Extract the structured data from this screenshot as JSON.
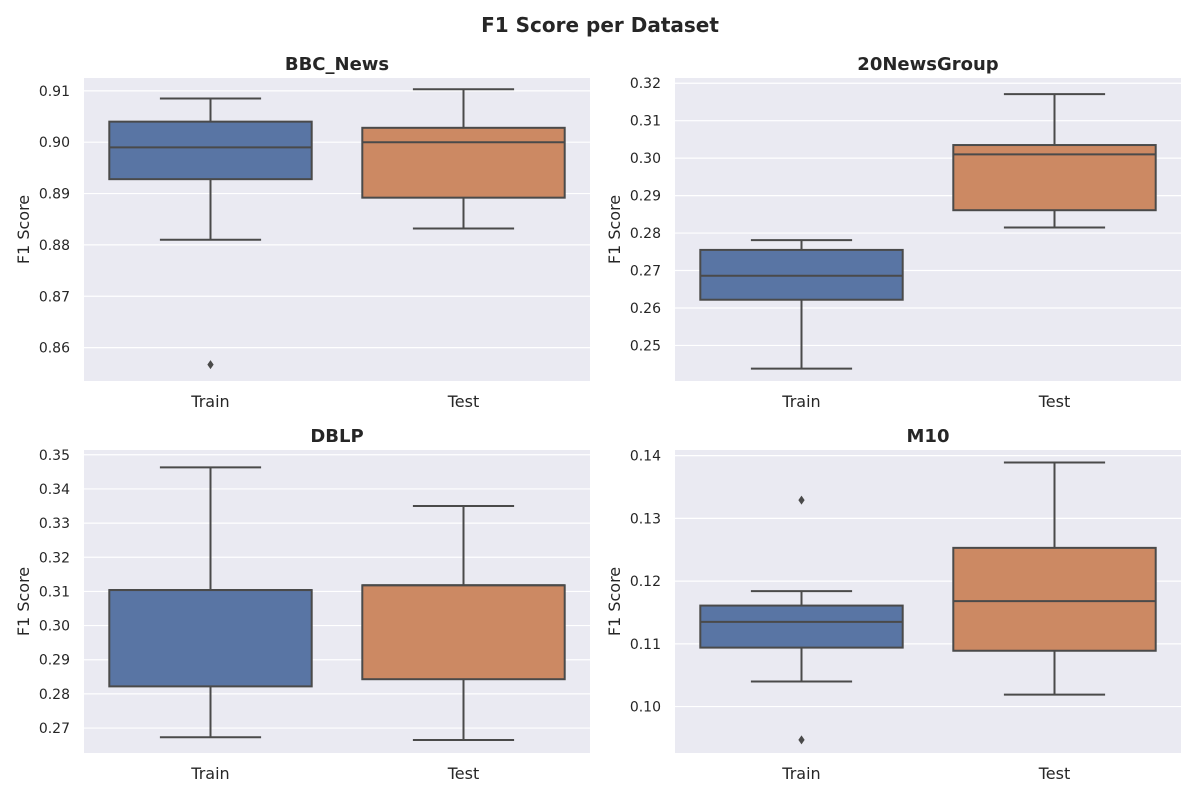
{
  "figure": {
    "title": "F1 Score per Dataset"
  },
  "colors": {
    "background": "#EAEAF2",
    "grid": "#ffffff",
    "line": "#4a4a4a",
    "Train": "#5975A4",
    "Test": "#CC8963"
  },
  "chart_data": [
    {
      "type": "box",
      "title": "BBC_News",
      "xlabel": "",
      "ylabel": "F1 Score",
      "categories": [
        "Train",
        "Test"
      ],
      "ylim": [
        0.8535,
        0.9125
      ],
      "yticks": [
        0.86,
        0.87,
        0.88,
        0.89,
        0.9,
        0.91
      ],
      "ytick_labels": [
        "0.86",
        "0.87",
        "0.88",
        "0.89",
        "0.90",
        "0.91"
      ],
      "grid": true,
      "boxes": [
        {
          "name": "Train",
          "whislo": 0.881,
          "q1": 0.8928,
          "med": 0.899,
          "q3": 0.904,
          "whishi": 0.9085,
          "fliers": [
            0.8567
          ]
        },
        {
          "name": "Test",
          "whislo": 0.8832,
          "q1": 0.8892,
          "med": 0.9,
          "q3": 0.9028,
          "whishi": 0.9103,
          "fliers": []
        }
      ]
    },
    {
      "type": "box",
      "title": "20NewsGroup",
      "xlabel": "",
      "ylabel": "F1 Score",
      "categories": [
        "Train",
        "Test"
      ],
      "ylim": [
        0.2405,
        0.3214
      ],
      "yticks": [
        0.25,
        0.26,
        0.27,
        0.28,
        0.29,
        0.3,
        0.31,
        0.32
      ],
      "ytick_labels": [
        "0.25",
        "0.26",
        "0.27",
        "0.28",
        "0.29",
        "0.30",
        "0.31",
        "0.32"
      ],
      "grid": true,
      "boxes": [
        {
          "name": "Train",
          "whislo": 0.2438,
          "q1": 0.2622,
          "med": 0.2686,
          "q3": 0.2755,
          "whishi": 0.2781,
          "fliers": []
        },
        {
          "name": "Test",
          "whislo": 0.2815,
          "q1": 0.2861,
          "med": 0.301,
          "q3": 0.3035,
          "whishi": 0.3171,
          "fliers": []
        }
      ]
    },
    {
      "type": "box",
      "title": "DBLP",
      "xlabel": "",
      "ylabel": "F1 Score",
      "categories": [
        "Train",
        "Test"
      ],
      "ylim": [
        0.2627,
        0.3514
      ],
      "yticks": [
        0.27,
        0.28,
        0.29,
        0.3,
        0.31,
        0.32,
        0.33,
        0.34,
        0.35
      ],
      "ytick_labels": [
        "0.27",
        "0.28",
        "0.29",
        "0.30",
        "0.31",
        "0.32",
        "0.33",
        "0.34",
        "0.35"
      ],
      "grid": true,
      "boxes": [
        {
          "name": "Train",
          "whislo": 0.2673,
          "q1": 0.2822,
          "med": 0.3104,
          "q3": 0.3104,
          "whishi": 0.3463,
          "fliers": []
        },
        {
          "name": "Test",
          "whislo": 0.2665,
          "q1": 0.2843,
          "med": 0.3118,
          "q3": 0.3118,
          "whishi": 0.335,
          "fliers": []
        }
      ]
    },
    {
      "type": "box",
      "title": "M10",
      "xlabel": "",
      "ylabel": "F1 Score",
      "categories": [
        "Train",
        "Test"
      ],
      "ylim": [
        0.0926,
        0.1409
      ],
      "yticks": [
        0.1,
        0.11,
        0.12,
        0.13,
        0.14
      ],
      "ytick_labels": [
        "0.10",
        "0.11",
        "0.12",
        "0.13",
        "0.14"
      ],
      "grid": true,
      "boxes": [
        {
          "name": "Train",
          "whislo": 0.104,
          "q1": 0.1094,
          "med": 0.1135,
          "q3": 0.1161,
          "whishi": 0.1184,
          "fliers": [
            0.1329,
            0.0947
          ]
        },
        {
          "name": "Test",
          "whislo": 0.1019,
          "q1": 0.1089,
          "med": 0.1168,
          "q3": 0.1253,
          "whishi": 0.1389,
          "fliers": []
        }
      ]
    }
  ]
}
